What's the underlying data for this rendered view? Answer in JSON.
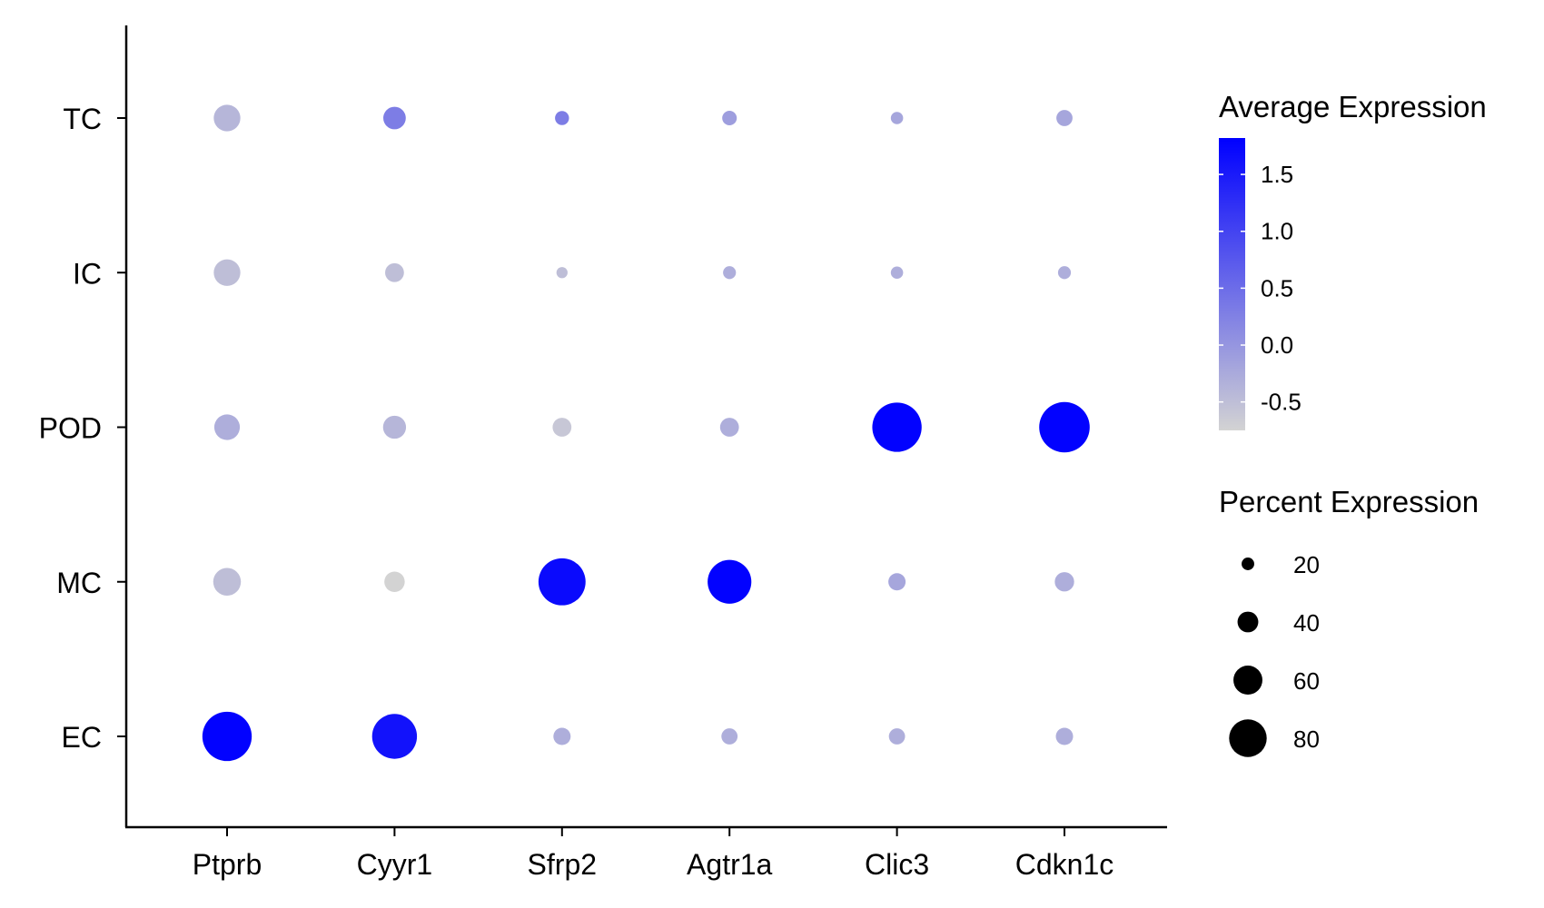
{
  "chart_data": {
    "type": "scatter",
    "subtype": "dot-plot",
    "x_categories": [
      "Ptprb",
      "Cyyr1",
      "Sfrp2",
      "Agtr1a",
      "Clic3",
      "Cdkn1c"
    ],
    "y_categories": [
      "EC",
      "MC",
      "POD",
      "IC",
      "TC"
    ],
    "points": [
      {
        "gene": "Ptprb",
        "cell": "TC",
        "avg_exp": -0.4,
        "pct": 40
      },
      {
        "gene": "Cyyr1",
        "cell": "TC",
        "avg_exp": 0.3,
        "pct": 32
      },
      {
        "gene": "Sfrp2",
        "cell": "TC",
        "avg_exp": 0.3,
        "pct": 16
      },
      {
        "gene": "Agtr1a",
        "cell": "TC",
        "avg_exp": -0.1,
        "pct": 17
      },
      {
        "gene": "Clic3",
        "cell": "TC",
        "avg_exp": -0.2,
        "pct": 13
      },
      {
        "gene": "Cdkn1c",
        "cell": "TC",
        "avg_exp": -0.2,
        "pct": 20
      },
      {
        "gene": "Ptprb",
        "cell": "IC",
        "avg_exp": -0.5,
        "pct": 40
      },
      {
        "gene": "Cyyr1",
        "cell": "IC",
        "avg_exp": -0.5,
        "pct": 25
      },
      {
        "gene": "Sfrp2",
        "cell": "IC",
        "avg_exp": -0.5,
        "pct": 11
      },
      {
        "gene": "Agtr1a",
        "cell": "IC",
        "avg_exp": -0.3,
        "pct": 14
      },
      {
        "gene": "Clic3",
        "cell": "IC",
        "avg_exp": -0.3,
        "pct": 13
      },
      {
        "gene": "Cdkn1c",
        "cell": "IC",
        "avg_exp": -0.3,
        "pct": 14
      },
      {
        "gene": "Ptprb",
        "cell": "POD",
        "avg_exp": -0.3,
        "pct": 38
      },
      {
        "gene": "Cyyr1",
        "cell": "POD",
        "avg_exp": -0.4,
        "pct": 33
      },
      {
        "gene": "Sfrp2",
        "cell": "POD",
        "avg_exp": -0.6,
        "pct": 25
      },
      {
        "gene": "Agtr1a",
        "cell": "POD",
        "avg_exp": -0.3,
        "pct": 25
      },
      {
        "gene": "Clic3",
        "cell": "POD",
        "avg_exp": 1.8,
        "pct": 82
      },
      {
        "gene": "Cdkn1c",
        "cell": "POD",
        "avg_exp": 1.8,
        "pct": 84
      },
      {
        "gene": "Ptprb",
        "cell": "MC",
        "avg_exp": -0.5,
        "pct": 42
      },
      {
        "gene": "Cyyr1",
        "cell": "MC",
        "avg_exp": -0.8,
        "pct": 28
      },
      {
        "gene": "Sfrp2",
        "cell": "MC",
        "avg_exp": 1.7,
        "pct": 78
      },
      {
        "gene": "Agtr1a",
        "cell": "MC",
        "avg_exp": 1.8,
        "pct": 72
      },
      {
        "gene": "Clic3",
        "cell": "MC",
        "avg_exp": -0.2,
        "pct": 22
      },
      {
        "gene": "Cdkn1c",
        "cell": "MC",
        "avg_exp": -0.3,
        "pct": 26
      },
      {
        "gene": "Ptprb",
        "cell": "EC",
        "avg_exp": 1.8,
        "pct": 82
      },
      {
        "gene": "Cyyr1",
        "cell": "EC",
        "avg_exp": 1.6,
        "pct": 74
      },
      {
        "gene": "Sfrp2",
        "cell": "EC",
        "avg_exp": -0.3,
        "pct": 22
      },
      {
        "gene": "Agtr1a",
        "cell": "EC",
        "avg_exp": -0.3,
        "pct": 20
      },
      {
        "gene": "Clic3",
        "cell": "EC",
        "avg_exp": -0.3,
        "pct": 20
      },
      {
        "gene": "Cdkn1c",
        "cell": "EC",
        "avg_exp": -0.3,
        "pct": 22
      }
    ],
    "color_legend": {
      "title": "Average Expression",
      "ticks": [
        1.5,
        1.0,
        0.5,
        0.0,
        -0.5
      ],
      "tick_labels": [
        "1.5",
        "1.0",
        "0.5",
        "0.0",
        "-0.5"
      ],
      "range": [
        -0.75,
        1.82
      ],
      "low_color": "#d3d3d3",
      "high_color": "#0000ff"
    },
    "size_legend": {
      "title": "Percent Expression",
      "values": [
        20,
        40,
        60,
        80
      ],
      "labels": [
        "20",
        "40",
        "60",
        "80"
      ]
    },
    "grid": false,
    "legend_placement": "right"
  }
}
